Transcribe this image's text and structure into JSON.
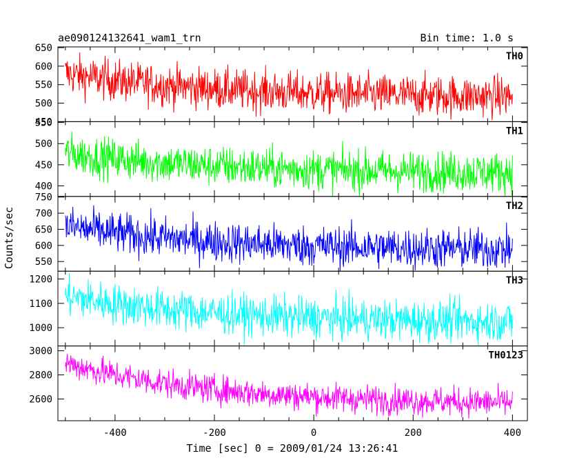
{
  "header": {
    "title": "ae090124132641_wam1_trn",
    "bin_time": "Bin time: 1.0 s"
  },
  "chart_data": {
    "type": "line",
    "xlabel": "Time [sec] 0 = 2009/01/24 13:26:41",
    "ylabel": "Counts/sec",
    "xlim": [
      -515,
      430
    ],
    "x_ticks": [
      -400,
      -200,
      0,
      200,
      400
    ],
    "x_start": -500,
    "x_end": 400,
    "x_step": 1,
    "panels": [
      {
        "name": "TH0",
        "color": "#ff0000",
        "ylim": [
          450,
          652
        ],
        "y_ticks": [
          450,
          500,
          550,
          600,
          650
        ],
        "trend_start": 580,
        "trend_end": 518,
        "noise": 28
      },
      {
        "name": "TH1",
        "color": "#00ff00",
        "ylim": [
          375,
          552
        ],
        "y_ticks": [
          400,
          450,
          500,
          550
        ],
        "trend_start": 478,
        "trend_end": 432,
        "noise": 24
      },
      {
        "name": "TH2",
        "color": "#0000ff",
        "ylim": [
          520,
          752
        ],
        "y_ticks": [
          550,
          600,
          650,
          700,
          750
        ],
        "trend_start": 660,
        "trend_end": 588,
        "noise": 32
      },
      {
        "name": "TH3",
        "color": "#00ffff",
        "ylim": [
          925,
          1232
        ],
        "y_ticks": [
          1000,
          1100,
          1200
        ],
        "trend_start": 1130,
        "trend_end": 1025,
        "noise": 42
      },
      {
        "name": "TH0123",
        "color": "#ff00ff",
        "ylim": [
          2420,
          3040
        ],
        "y_ticks": [
          2600,
          2800,
          3000
        ],
        "trend_start": 2900,
        "trend_end": 2570,
        "noise": 60
      }
    ]
  }
}
